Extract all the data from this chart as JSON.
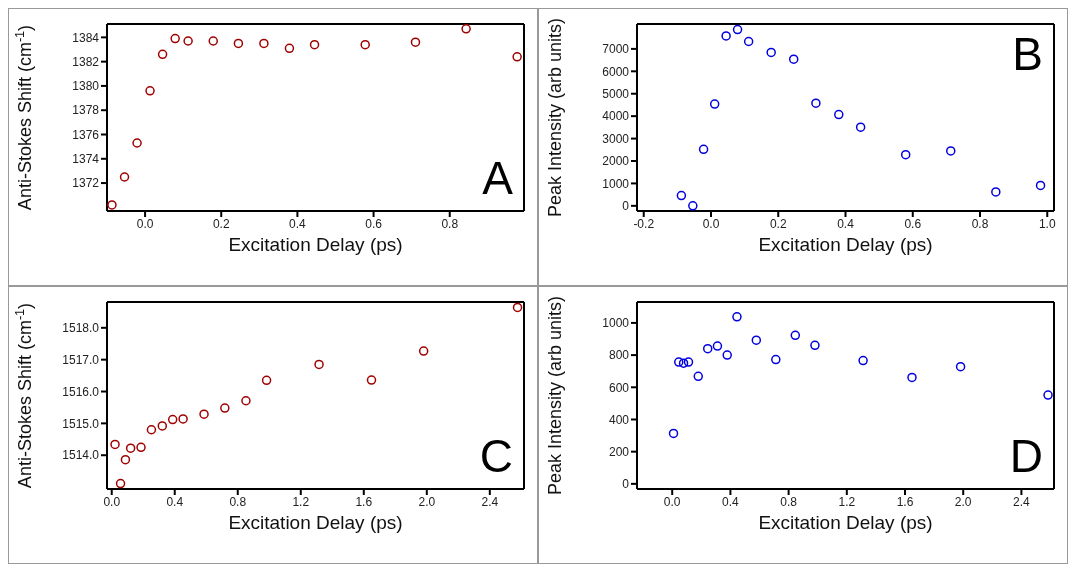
{
  "chart_data": [
    {
      "type": "scatter",
      "xlabel": "Excitation Delay (ps)",
      "ylabel": "Anti-Stokes Shift (cm$^{-1}$)",
      "annotations": [
        "A"
      ],
      "marker": "circle",
      "xlim": [
        -0.1,
        0.995
      ],
      "ylim": [
        1369.7,
        1385.1
      ],
      "xticks": [
        {
          "value": 0,
          "label": "0.0"
        },
        0.2,
        0.4,
        0.6,
        0.8
      ],
      "yticks": [
        1372,
        1374,
        1376,
        1378,
        1380,
        1382,
        1384
      ],
      "series": [
        {
          "color": "#a00000",
          "x": [
            -0.087,
            -0.054,
            -0.021,
            0.013,
            0.046,
            0.079,
            0.113,
            0.179,
            0.245,
            0.312,
            0.379,
            0.445,
            0.578,
            0.71,
            0.843,
            0.977
          ],
          "values": [
            1370.2,
            1372.5,
            1375.3,
            1379.6,
            1382.6,
            1383.9,
            1383.7,
            1383.7,
            1383.5,
            1383.5,
            1383.1,
            1383.4,
            1383.4,
            1383.6,
            1384.7,
            1382.4
          ]
        }
      ]
    },
    {
      "type": "scatter",
      "xlabel": "Excitation Delay (ps)",
      "ylabel": "Peak Intensity (arb units)",
      "annotations": [
        "B"
      ],
      "marker": "circle",
      "xlim": [
        -0.22,
        1.02
      ],
      "ylim": [
        -230,
        8110
      ],
      "xticks": [
        -0.2,
        {
          "value": 0,
          "label": "0.0"
        },
        0.2,
        0.4,
        0.6,
        0.8,
        {
          "value": 1,
          "label": "1.0"
        }
      ],
      "yticks": [
        0,
        1000,
        2000,
        3000,
        4000,
        5000,
        6000,
        7000
      ],
      "series": [
        {
          "color": "#0000e0",
          "x": [
            -0.088,
            -0.054,
            -0.022,
            0.011,
            0.045,
            0.079,
            0.112,
            0.179,
            0.246,
            0.312,
            0.38,
            0.445,
            0.579,
            0.713,
            0.847,
            0.98
          ],
          "values": [
            460,
            0,
            2520,
            4540,
            7580,
            7860,
            7330,
            6840,
            6540,
            4580,
            4070,
            3510,
            2280,
            2450,
            620,
            910
          ]
        }
      ]
    },
    {
      "type": "scatter",
      "xlabel": "Excitation Delay (ps)",
      "ylabel": "Anti-Stokes Shift (cm$^{-1}$)",
      "annotations": [
        "C"
      ],
      "marker": "circle",
      "xlim": [
        -0.03,
        2.617
      ],
      "ylim": [
        1512.94,
        1518.81
      ],
      "xticks": [
        {
          "value": 0,
          "label": "0.0"
        },
        0.4,
        0.8,
        1.2,
        1.6,
        {
          "value": 2,
          "label": "2.0"
        },
        2.4
      ],
      "yticks": [
        {
          "value": 1514,
          "label": "1514.0"
        },
        {
          "value": 1515,
          "label": "1515.0"
        },
        {
          "value": 1516,
          "label": "1516.0"
        },
        {
          "value": 1517,
          "label": "1517.0"
        },
        {
          "value": 1518,
          "label": "1518.0"
        }
      ],
      "series": [
        {
          "color": "#a00000",
          "x": [
            0.021,
            0.056,
            0.087,
            0.12,
            0.186,
            0.252,
            0.321,
            0.387,
            0.453,
            0.586,
            0.718,
            0.852,
            0.983,
            1.316,
            1.649,
            1.98,
            2.576
          ],
          "values": [
            1514.34,
            1513.11,
            1513.86,
            1514.22,
            1514.25,
            1514.8,
            1514.92,
            1515.12,
            1515.14,
            1515.29,
            1515.48,
            1515.71,
            1516.35,
            1516.85,
            1516.36,
            1517.27,
            1518.64
          ]
        }
      ]
    },
    {
      "type": "scatter",
      "xlabel": "Excitation Delay (ps)",
      "ylabel": "Peak Intensity (arb units)",
      "annotations": [
        "D"
      ],
      "marker": "circle",
      "xlim": [
        -0.242,
        2.624
      ],
      "ylim": [
        -32,
        1130
      ],
      "xticks": [
        {
          "value": 0,
          "label": "0.0"
        },
        0.4,
        0.8,
        1.2,
        1.6,
        {
          "value": 2,
          "label": "2.0"
        },
        2.4
      ],
      "yticks": [
        0,
        200,
        400,
        600,
        800,
        1000
      ],
      "series": [
        {
          "color": "#0000e0",
          "x": [
            0.009,
            0.045,
            0.078,
            0.112,
            0.179,
            0.244,
            0.311,
            0.378,
            0.445,
            0.578,
            0.712,
            0.846,
            0.981,
            1.312,
            1.648,
            1.982,
            2.583
          ],
          "values": [
            313,
            757,
            750,
            757,
            668,
            840,
            856,
            800,
            1038,
            893,
            772,
            923,
            861,
            766,
            661,
            728,
            552
          ]
        }
      ]
    }
  ]
}
